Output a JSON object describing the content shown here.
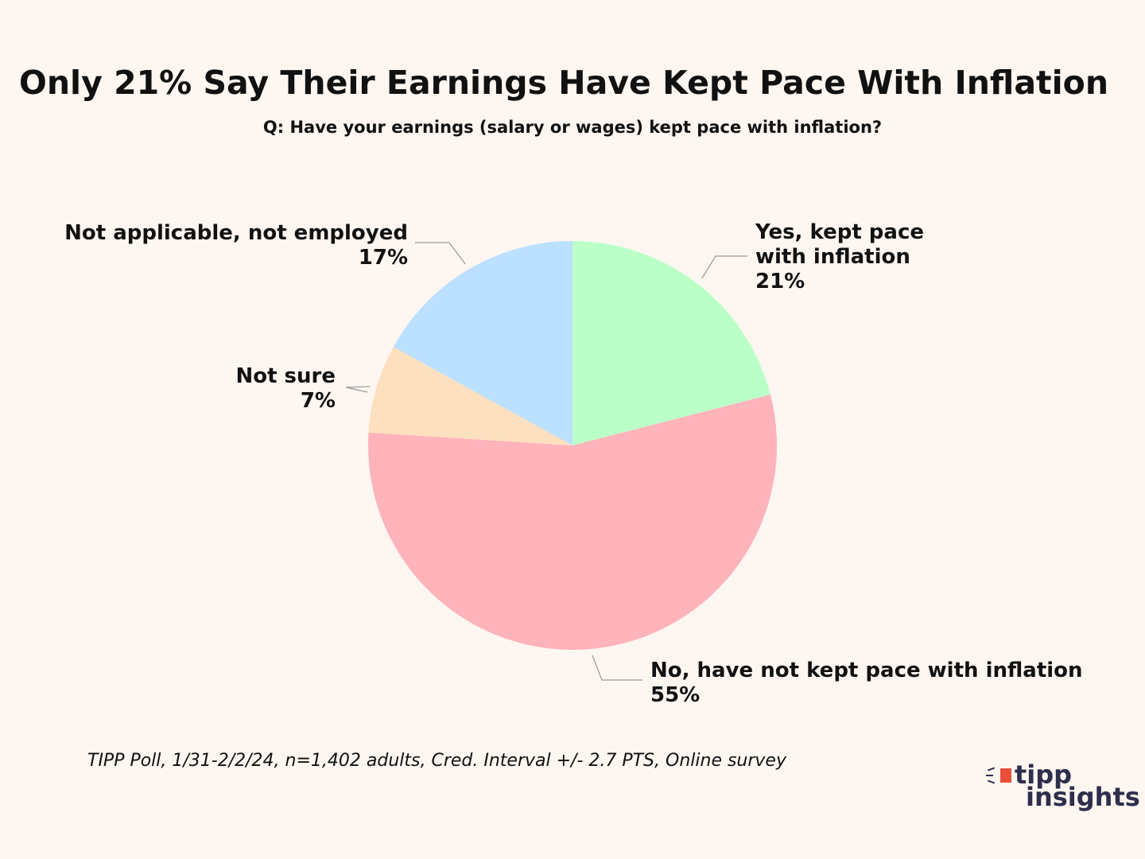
{
  "title": "Only 21% Say Their Earnings Have Kept Pace With Inflation",
  "subtitle": "Q: Have your earnings (salary or wages) kept pace with inflation?",
  "footnote": "TIPP Poll, 1/31-2/2/24, n=1,402 adults, Cred. Interval +/- 2.7 PTS, Online survey",
  "logo": {
    "line1": "tipp",
    "line2": "insights",
    "accent": "#e8503a",
    "text_color": "#2e2e4d"
  },
  "chart_data": {
    "type": "pie",
    "title": "Only 21% Say Their Earnings Have Kept Pace With Inflation",
    "subtitle": "Q: Have your earnings (salary or wages) kept pace with inflation?",
    "start": "12 o'clock, clockwise",
    "slices": [
      {
        "label": "Yes, kept pace with inflation",
        "value": 21,
        "value_label": "21%",
        "color": "#bbffc8"
      },
      {
        "label": "No, have not kept pace with inflation",
        "value": 55,
        "value_label": "55%",
        "color": "#ffb3bb"
      },
      {
        "label": "Not sure",
        "value": 7,
        "value_label": "7%",
        "color": "#fde0bf"
      },
      {
        "label": "Not applicable, not employed",
        "value": 17,
        "value_label": "17%",
        "color": "#bce0ff"
      }
    ]
  }
}
